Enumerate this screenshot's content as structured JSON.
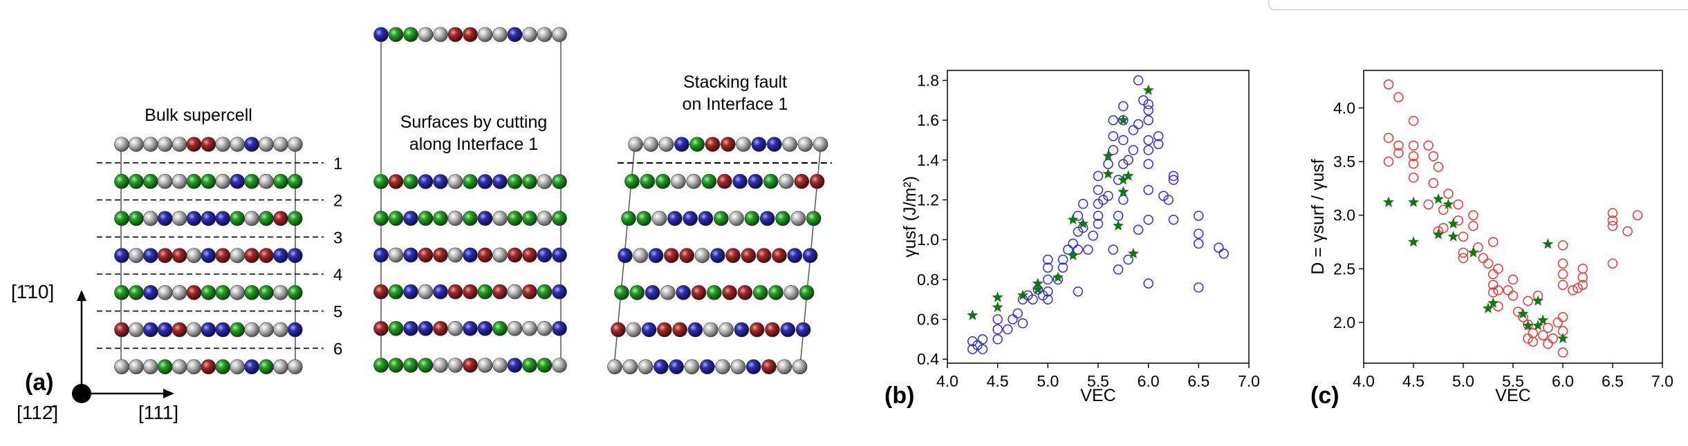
{
  "panel_a": {
    "label": "(a)",
    "axis_vertical": "[1̄10]",
    "axis_horizontal": "[111]",
    "axis_origin": "[112̄]",
    "bulk_title": "Bulk supercell",
    "surfaces_title_line1": "Surfaces by cutting",
    "surfaces_title_line2": "along Interface 1",
    "fault_title_line1": "Stacking fault",
    "fault_title_line2": "on Interface 1",
    "interface_labels": [
      "1",
      "2",
      "3",
      "4",
      "5",
      "6"
    ],
    "atom_colors": {
      "G": "#959595",
      "R": "#8a1e1e",
      "B": "#25259a",
      "N": "#1c861c"
    },
    "bulk_rows": [
      "GGGGGRRGGBGGG",
      "NNNGGNNGBNGNN",
      "NNGBGBBBNGNRN",
      "BGBRRGBRGRRBB",
      "NNBGGRNNGNNGN",
      "RGBBRGBBNGGGB",
      "GGGNGGRNGBNGG"
    ],
    "surface_top_row": "BNNGGRRGGBGGG",
    "surface_rows": [
      "NRNBBGNBBNNGN",
      "NNBNNGNBGNNGN",
      "BGBRRGBRGRRBB",
      "RNBGBRRNRGRNB",
      "RNBBRGBBNGGGB",
      "NNNNGGRGGBNNG"
    ],
    "fault_rows": [
      "GGGBNRRGBBGGG",
      "NNNGGNRBBNGRR",
      "NNGBBBNGNBNGN",
      "BGBRRGBRRRRBB",
      "NNBGBRNRRNNGN",
      "RGBRRBGGBRRBB",
      "GGGBBGBGGBRGG"
    ]
  },
  "chart_data": [
    {
      "type": "scatter",
      "panel_label": "(b)",
      "xlabel": "VEC",
      "ylabel": "γusf (J/m²)",
      "xlim": [
        4.0,
        7.0
      ],
      "ylim": [
        0.38,
        1.85
      ],
      "xticks": [
        "4.0",
        "4.5",
        "5.0",
        "5.5",
        "6.0",
        "6.5",
        "7.0"
      ],
      "yticks": [
        "0.4",
        "0.6",
        "0.8",
        "1.0",
        "1.2",
        "1.4",
        "1.6",
        "1.8"
      ],
      "colors": {
        "circles": "#2b2bdd",
        "stars": "#137513"
      },
      "series": [
        {
          "marker": "circle",
          "points": [
            [
              4.25,
              0.45
            ],
            [
              4.25,
              0.49
            ],
            [
              4.3,
              0.47
            ],
            [
              4.35,
              0.45
            ],
            [
              4.35,
              0.5
            ],
            [
              4.5,
              0.5
            ],
            [
              4.5,
              0.55
            ],
            [
              4.5,
              0.6
            ],
            [
              4.6,
              0.55
            ],
            [
              4.65,
              0.6
            ],
            [
              4.7,
              0.63
            ],
            [
              4.75,
              0.58
            ],
            [
              4.75,
              0.7
            ],
            [
              4.8,
              0.72
            ],
            [
              4.85,
              0.7
            ],
            [
              4.9,
              0.75
            ],
            [
              4.95,
              0.72
            ],
            [
              5.0,
              0.7
            ],
            [
              5.0,
              0.74
            ],
            [
              5.0,
              0.8
            ],
            [
              5.0,
              0.86
            ],
            [
              5.0,
              0.9
            ],
            [
              5.1,
              0.8
            ],
            [
              5.15,
              0.86
            ],
            [
              5.15,
              0.9
            ],
            [
              5.2,
              0.95
            ],
            [
              5.25,
              0.98
            ],
            [
              5.3,
              0.95
            ],
            [
              5.3,
              1.04
            ],
            [
              5.3,
              1.12
            ],
            [
              5.35,
              1.06
            ],
            [
              5.35,
              1.18
            ],
            [
              5.3,
              0.74
            ],
            [
              5.4,
              0.95
            ],
            [
              5.45,
              1.02
            ],
            [
              5.5,
              1.08
            ],
            [
              5.5,
              1.12
            ],
            [
              5.5,
              1.18
            ],
            [
              5.5,
              1.25
            ],
            [
              5.5,
              1.32
            ],
            [
              5.55,
              1.2
            ],
            [
              5.6,
              1.22
            ],
            [
              5.6,
              1.38
            ],
            [
              5.65,
              1.45
            ],
            [
              5.65,
              1.52
            ],
            [
              5.65,
              1.6
            ],
            [
              5.7,
              1.12
            ],
            [
              5.7,
              1.3
            ],
            [
              5.75,
              1.2
            ],
            [
              5.75,
              1.38
            ],
            [
              5.75,
              1.5
            ],
            [
              5.75,
              1.6
            ],
            [
              5.75,
              1.67
            ],
            [
              5.8,
              1.4
            ],
            [
              5.85,
              1.45
            ],
            [
              5.85,
              1.55
            ],
            [
              5.9,
              1.8
            ],
            [
              5.9,
              1.58
            ],
            [
              5.9,
              1.05
            ],
            [
              5.65,
              0.95
            ],
            [
              5.7,
              0.85
            ],
            [
              5.8,
              0.9
            ],
            [
              5.95,
              1.7
            ],
            [
              6.0,
              1.68
            ],
            [
              6.0,
              1.65
            ],
            [
              6.0,
              1.6
            ],
            [
              6.0,
              1.5
            ],
            [
              6.0,
              1.45
            ],
            [
              6.0,
              1.38
            ],
            [
              6.0,
              1.25
            ],
            [
              6.0,
              1.1
            ],
            [
              6.0,
              0.78
            ],
            [
              6.1,
              1.48
            ],
            [
              6.1,
              1.52
            ],
            [
              6.15,
              1.22
            ],
            [
              6.2,
              1.2
            ],
            [
              6.25,
              1.3
            ],
            [
              6.25,
              1.32
            ],
            [
              6.25,
              1.1
            ],
            [
              6.5,
              1.12
            ],
            [
              6.5,
              1.03
            ],
            [
              6.5,
              0.98
            ],
            [
              6.5,
              0.76
            ],
            [
              6.7,
              0.96
            ],
            [
              6.75,
              0.93
            ]
          ]
        },
        {
          "marker": "star",
          "points": [
            [
              4.25,
              0.62
            ],
            [
              4.5,
              0.71
            ],
            [
              4.5,
              0.66
            ],
            [
              4.75,
              0.72
            ],
            [
              4.9,
              0.78
            ],
            [
              4.9,
              0.75
            ],
            [
              5.1,
              0.81
            ],
            [
              5.25,
              1.1
            ],
            [
              5.25,
              0.92
            ],
            [
              5.35,
              1.08
            ],
            [
              5.6,
              1.42
            ],
            [
              5.6,
              1.33
            ],
            [
              5.75,
              1.6
            ],
            [
              5.75,
              1.3
            ],
            [
              5.8,
              1.32
            ],
            [
              5.75,
              1.24
            ],
            [
              5.7,
              1.07
            ],
            [
              5.85,
              0.93
            ],
            [
              6.0,
              1.75
            ]
          ]
        }
      ]
    },
    {
      "type": "scatter",
      "panel_label": "(c)",
      "xlabel": "VEC",
      "ylabel": "D = γsurf / γusf",
      "xlim": [
        4.0,
        7.0
      ],
      "ylim": [
        1.62,
        4.35
      ],
      "xticks": [
        "4.0",
        "4.5",
        "5.0",
        "5.5",
        "6.0",
        "6.5",
        "7.0"
      ],
      "yticks": [
        "2.0",
        "2.5",
        "3.0",
        "3.5",
        "4.0"
      ],
      "colors": {
        "circles": "#ee3333",
        "stars": "#137513"
      },
      "series": [
        {
          "marker": "circle",
          "points": [
            [
              4.25,
              4.22
            ],
            [
              4.35,
              4.1
            ],
            [
              4.25,
              3.72
            ],
            [
              4.25,
              3.5
            ],
            [
              4.35,
              3.58
            ],
            [
              4.35,
              3.65
            ],
            [
              4.5,
              3.88
            ],
            [
              4.5,
              3.65
            ],
            [
              4.5,
              3.55
            ],
            [
              4.5,
              3.48
            ],
            [
              4.5,
              3.35
            ],
            [
              4.65,
              3.65
            ],
            [
              4.7,
              3.55
            ],
            [
              4.7,
              3.3
            ],
            [
              4.65,
              3.1
            ],
            [
              4.75,
              3.45
            ],
            [
              4.85,
              3.2
            ],
            [
              4.8,
              3.05
            ],
            [
              4.8,
              2.88
            ],
            [
              4.75,
              2.85
            ],
            [
              4.95,
              3.1
            ],
            [
              4.95,
              2.95
            ],
            [
              5.0,
              2.8
            ],
            [
              5.0,
              2.65
            ],
            [
              5.0,
              2.6
            ],
            [
              5.1,
              2.9
            ],
            [
              5.1,
              3.0
            ],
            [
              5.15,
              2.7
            ],
            [
              5.2,
              2.6
            ],
            [
              5.25,
              2.55
            ],
            [
              5.3,
              2.45
            ],
            [
              5.3,
              2.35
            ],
            [
              5.3,
              2.28
            ],
            [
              5.35,
              2.5
            ],
            [
              5.35,
              2.3
            ],
            [
              5.35,
              2.15
            ],
            [
              5.3,
              2.75
            ],
            [
              5.45,
              2.3
            ],
            [
              5.5,
              2.4
            ],
            [
              5.5,
              2.25
            ],
            [
              5.55,
              2.1
            ],
            [
              5.6,
              2.05
            ],
            [
              5.65,
              2.2
            ],
            [
              5.65,
              1.98
            ],
            [
              5.7,
              1.9
            ],
            [
              5.75,
              2.25
            ],
            [
              5.65,
              1.85
            ],
            [
              5.7,
              1.82
            ],
            [
              5.8,
              1.88
            ],
            [
              5.85,
              1.8
            ],
            [
              5.85,
              1.95
            ],
            [
              5.9,
              1.85
            ],
            [
              5.95,
              2.0
            ],
            [
              6.0,
              1.92
            ],
            [
              6.0,
              2.05
            ],
            [
              6.0,
              1.72
            ],
            [
              6.0,
              2.55
            ],
            [
              6.0,
              2.45
            ],
            [
              6.0,
              2.35
            ],
            [
              6.0,
              2.72
            ],
            [
              6.1,
              2.3
            ],
            [
              6.15,
              2.32
            ],
            [
              6.2,
              2.35
            ],
            [
              6.2,
              2.5
            ],
            [
              6.2,
              2.42
            ],
            [
              6.5,
              2.55
            ],
            [
              6.5,
              2.9
            ],
            [
              6.5,
              2.95
            ],
            [
              6.5,
              3.02
            ],
            [
              6.65,
              2.85
            ],
            [
              6.75,
              3.0
            ]
          ]
        },
        {
          "marker": "star",
          "points": [
            [
              4.25,
              3.12
            ],
            [
              4.5,
              3.12
            ],
            [
              4.5,
              2.75
            ],
            [
              4.75,
              3.15
            ],
            [
              4.75,
              2.82
            ],
            [
              4.85,
              3.1
            ],
            [
              4.9,
              2.92
            ],
            [
              4.9,
              2.8
            ],
            [
              5.1,
              2.65
            ],
            [
              5.25,
              2.13
            ],
            [
              5.3,
              2.18
            ],
            [
              5.6,
              2.08
            ],
            [
              5.65,
              1.97
            ],
            [
              5.75,
              2.2
            ],
            [
              5.75,
              1.97
            ],
            [
              5.8,
              2.02
            ],
            [
              5.85,
              2.73
            ],
            [
              6.0,
              1.85
            ]
          ]
        }
      ]
    }
  ]
}
